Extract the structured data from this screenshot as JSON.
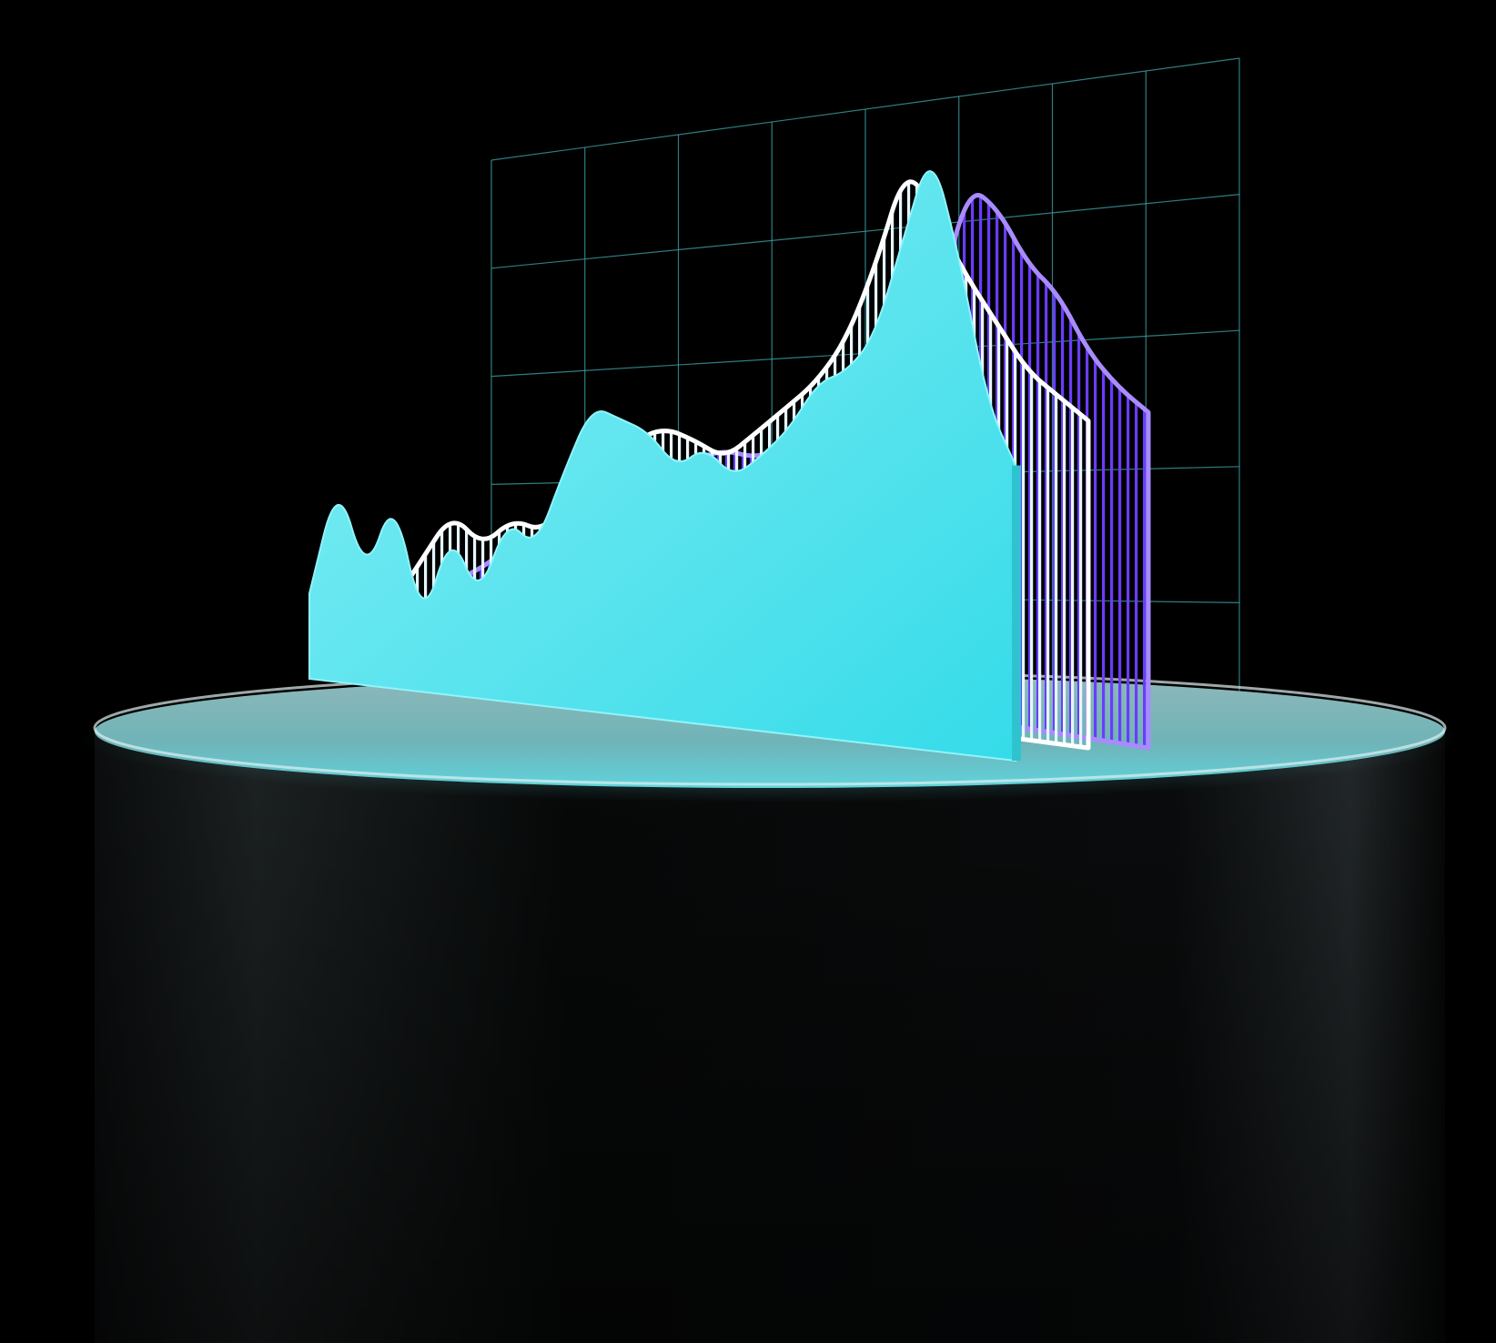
{
  "scene": {
    "background": "#000000",
    "pedestal": {
      "body_color": "#0a0c0d",
      "top_color": "#9fc7c8",
      "rim_glow": "#4fe6f0"
    },
    "grid_panel": {
      "line_color": "#3fa7ad",
      "columns": 8,
      "rows": 5
    },
    "layers": [
      {
        "name": "back",
        "style": "stripes",
        "color": "#6a3cff",
        "edge": "#a98bff",
        "profile": [
          0.12,
          0.16,
          0.22,
          0.2,
          0.27,
          0.25,
          0.32,
          0.37,
          0.43,
          0.45,
          0.44,
          0.47,
          0.46,
          0.5,
          0.56,
          0.6,
          0.74,
          0.97,
          0.93,
          0.83,
          0.78,
          0.68,
          0.62,
          0.58
        ]
      },
      {
        "name": "middle",
        "style": "stripes",
        "color": "#e6f6ff",
        "edge": "#ffffff",
        "profile": [
          0.1,
          0.2,
          0.3,
          0.24,
          0.3,
          0.28,
          0.36,
          0.4,
          0.47,
          0.5,
          0.48,
          0.45,
          0.5,
          0.55,
          0.6,
          0.68,
          0.82,
          1.0,
          0.9,
          0.8,
          0.72,
          0.64,
          0.6,
          0.56
        ]
      },
      {
        "name": "front",
        "style": "solid",
        "color": "#4fe6f0",
        "edge": "#8ff5fa",
        "profile": [
          0.16,
          0.38,
          0.2,
          0.36,
          0.12,
          0.3,
          0.18,
          0.33,
          0.28,
          0.42,
          0.54,
          0.52,
          0.5,
          0.44,
          0.48,
          0.43,
          0.47,
          0.52,
          0.6,
          0.62,
          0.68,
          0.84,
          1.0,
          0.82,
          0.58,
          0.48
        ]
      }
    ]
  }
}
